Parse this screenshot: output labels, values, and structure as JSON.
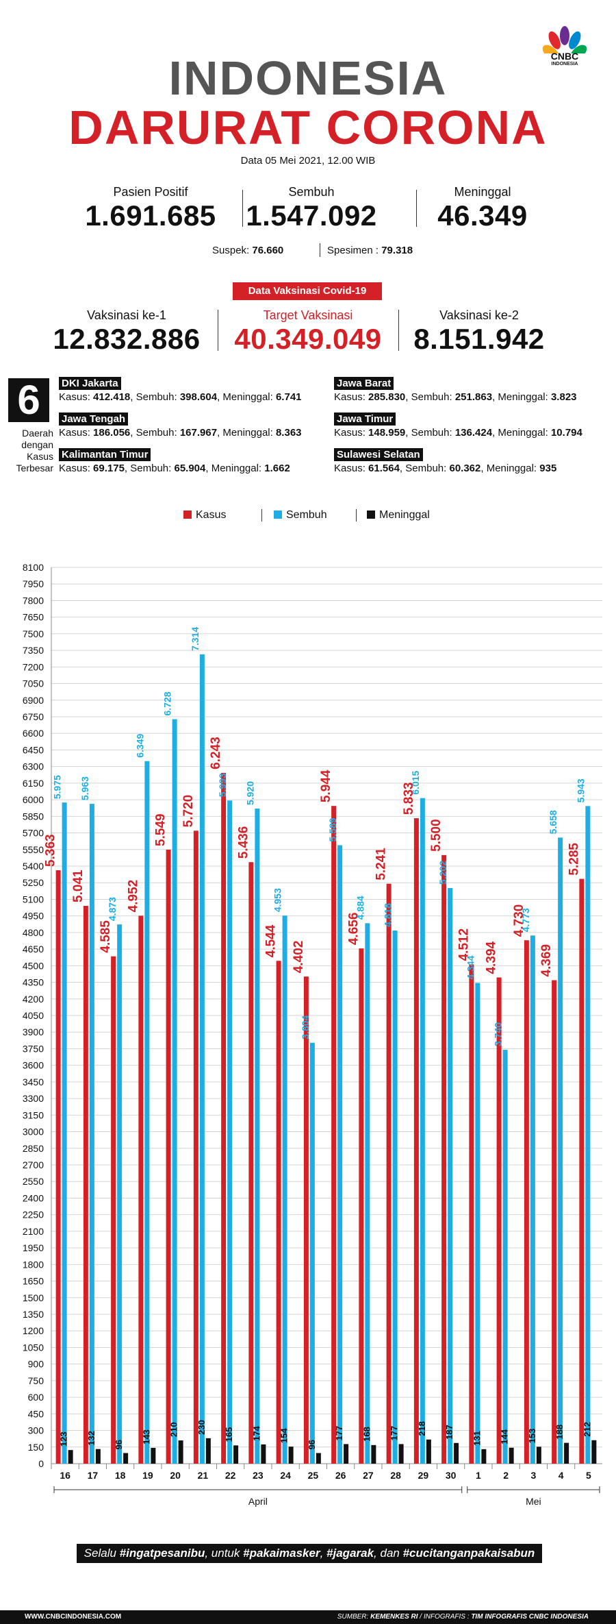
{
  "logo": {
    "brand": "CNBC",
    "sub": "INDONESIA"
  },
  "title": {
    "line1": "INDONESIA",
    "line2": "DARURAT CORONA"
  },
  "date": "Data 05 Mei 2021, 12.00 WIB",
  "stats": [
    {
      "label": "Pasien Positif",
      "value": "1.691.685"
    },
    {
      "label": "Sembuh",
      "value": "1.547.092"
    },
    {
      "label": "Meninggal",
      "value": "46.349"
    }
  ],
  "suspek": {
    "label": "Suspek:",
    "value": "76.660",
    "spes_label": "Spesimen :",
    "spes_value": "79.318"
  },
  "vaksin": {
    "banner": "Data Vaksinasi Covid-19",
    "items": [
      {
        "label": "Vaksinasi ke-1",
        "value": "12.832.886"
      },
      {
        "label": "Target Vaksinasi",
        "value": "40.349.049"
      },
      {
        "label": "Vaksinasi ke-2",
        "value": "8.151.942"
      }
    ]
  },
  "daerah": {
    "count": "6",
    "caption": [
      "Daerah",
      "dengan",
      "Kasus",
      "Terbesar"
    ],
    "regions": [
      {
        "name": "DKI Jakarta",
        "k_label": "Kasus:",
        "kasus": "412.418",
        "s_label": "Sembuh:",
        "sembuh": "398.604",
        "m_label": "Meninggal:",
        "meninggal": "6.741"
      },
      {
        "name": "Jawa Barat",
        "k_label": "Kasus:",
        "kasus": "285.830",
        "s_label": "Sembuh:",
        "sembuh": "251.863",
        "m_label": "Meninggal:",
        "meninggal": "3.823"
      },
      {
        "name": "Jawa Tengah",
        "k_label": "Kasus:",
        "kasus": "186.056",
        "s_label": "Sembuh:",
        "sembuh": "167.967",
        "m_label": "Meninggal:",
        "meninggal": "8.363"
      },
      {
        "name": "Jawa Timur",
        "k_label": "Kasus:",
        "kasus": "148.959",
        "s_label": "Sembuh:",
        "sembuh": "136.424",
        "m_label": "Meninggal:",
        "meninggal": "10.794"
      },
      {
        "name": "Kalimantan Timur",
        "k_label": "Kasus:",
        "kasus": "69.175",
        "s_label": "Sembuh:",
        "sembuh": "65.904",
        "m_label": "Meninggal:",
        "meninggal": "1.662"
      },
      {
        "name": "Sulawesi Selatan",
        "k_label": "Kasus:",
        "kasus": "61.564",
        "s_label": "Sembuh:",
        "sembuh": "60.362",
        "m_label": "Meninggal:",
        "meninggal": "935"
      }
    ]
  },
  "colors": {
    "kasus": "#d42027",
    "sembuh": "#1eaee4",
    "meninggal": "#111111"
  },
  "chart_data": {
    "type": "bar",
    "title": "",
    "categories": [
      "16",
      "17",
      "18",
      "19",
      "20",
      "21",
      "22",
      "23",
      "24",
      "25",
      "26",
      "27",
      "28",
      "29",
      "30",
      "1",
      "2",
      "3",
      "4",
      "5"
    ],
    "groups": [
      {
        "label": "April",
        "from": 0,
        "to": 14
      },
      {
        "label": "Mei",
        "from": 15,
        "to": 19
      }
    ],
    "legend": [
      "Kasus",
      "Sembuh",
      "Meninggal"
    ],
    "series": [
      {
        "name": "Kasus",
        "values": [
          5363,
          5041,
          4585,
          4952,
          5549,
          5720,
          6243,
          5436,
          4544,
          4402,
          5944,
          4656,
          5241,
          5833,
          5500,
          4512,
          4394,
          4730,
          4369,
          5285
        ],
        "labels": [
          "5.363",
          "5.041",
          "4.585",
          "4.952",
          "5.549",
          "5.720",
          "6.243",
          "5.436",
          "4.544",
          "4.402",
          "5.944",
          "4.656",
          "5.241",
          "5.833",
          "5.500",
          "4.512",
          "4.394",
          "4.730",
          "4.369",
          "5.285"
        ]
      },
      {
        "name": "Sembuh",
        "values": [
          5975,
          5963,
          4873,
          6349,
          6728,
          7314,
          5993,
          5920,
          4953,
          3804,
          5589,
          4884,
          4818,
          6015,
          5202,
          4344,
          3740,
          4773,
          5658,
          5943
        ],
        "labels": [
          "5.975",
          "5.963",
          "4.873",
          "6.349",
          "6.728",
          "7.314",
          "5.993",
          "5.920",
          "4.953",
          "3.804",
          "5.589",
          "4.884",
          "4.818",
          "6.015",
          "5.202",
          "4.344",
          "3.740",
          "4.773",
          "5.658",
          "5.943"
        ]
      },
      {
        "name": "Meninggal",
        "values": [
          123,
          132,
          96,
          143,
          210,
          230,
          165,
          174,
          154,
          96,
          177,
          168,
          177,
          218,
          187,
          131,
          144,
          153,
          188,
          212
        ],
        "labels": [
          "123",
          "132",
          "96",
          "143",
          "210",
          "230",
          "165",
          "174",
          "154",
          "96",
          "177",
          "168",
          "177",
          "218",
          "187",
          "131",
          "144",
          "153",
          "188",
          "212"
        ]
      }
    ],
    "ylim": [
      0,
      8100
    ],
    "yticks": [
      0,
      150,
      300,
      450,
      600,
      750,
      900,
      1050,
      1200,
      1350,
      1500,
      1650,
      1800,
      1950,
      2100,
      2250,
      2400,
      2550,
      2700,
      2850,
      3000,
      3150,
      3300,
      3450,
      3600,
      3750,
      3900,
      4050,
      4200,
      4350,
      4500,
      4650,
      4800,
      4950,
      5100,
      5250,
      5400,
      5550,
      5700,
      5850,
      6000,
      6150,
      6300,
      6450,
      6600,
      6750,
      6900,
      7050,
      7200,
      7350,
      7500,
      7650,
      7800,
      7950,
      8100
    ],
    "grid": true
  },
  "slogan": {
    "pre": "Selalu ",
    "t1": "#ingatpesanibu",
    "mid1": ", untuk ",
    "t2": "#pakaimasker",
    "sep": ", ",
    "t3": "#jagarak",
    "mid2": ", dan ",
    "t4": "#cucitanganpakaisabun"
  },
  "footer": {
    "website": "WWW.CNBCINDONESIA.COM",
    "source_label": "SUMBER: ",
    "source": "KEMENKES RI",
    "sep": " / INFOGRAFIS : ",
    "credit": "TIM INFOGRAFIS CNBC INDONESIA"
  }
}
